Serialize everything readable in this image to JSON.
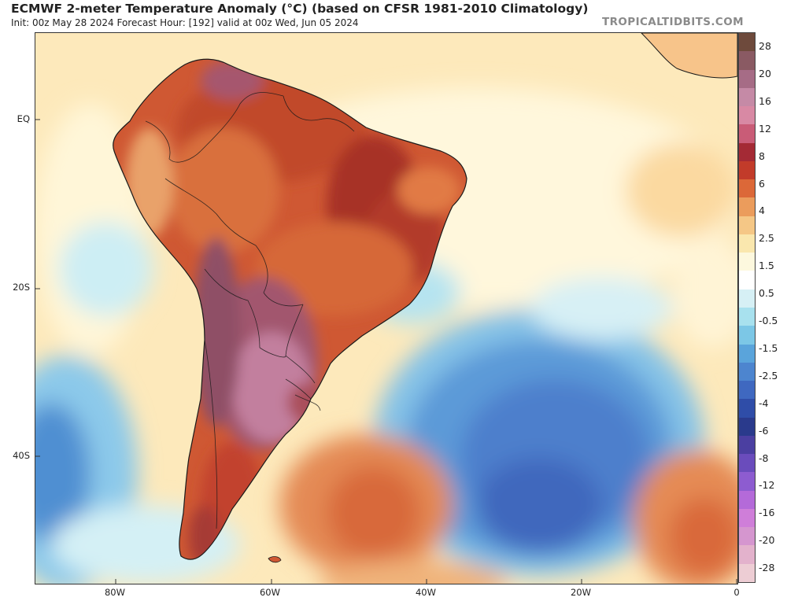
{
  "header": {
    "title": "ECMWF 2-meter Temperature Anomaly (°C) (based on CFSR 1981-2010 Climatology)",
    "subtitle": "Init: 00z May 28 2024   Forecast Hour: [192]   valid at 00z Wed, Jun 05 2024",
    "brand": "TROPICALTIDBITS.COM"
  },
  "axes": {
    "lat_labels": [
      "EQ",
      "20S",
      "40S"
    ],
    "lon_labels": [
      "80W",
      "60W",
      "40W",
      "20W",
      "0"
    ]
  },
  "colorbar": {
    "labels": [
      "28",
      "20",
      "16",
      "12",
      "8",
      "6",
      "4",
      "2.5",
      "1.5",
      "0.5",
      "-0.5",
      "-1.5",
      "-2.5",
      "-4",
      "-6",
      "-8",
      "-12",
      "-16",
      "-20",
      "-28"
    ],
    "colors": [
      "#6e4a3c",
      "#8a5a63",
      "#a66c86",
      "#c58aa6",
      "#d889a4",
      "#c95c77",
      "#a42a35",
      "#c23b2a",
      "#dc6838",
      "#eb9c5c",
      "#f5c786",
      "#fae7ae",
      "#fdf8de",
      "#ffffff",
      "#d6f0f5",
      "#a8e1ee",
      "#7cc7e6",
      "#5aa4db",
      "#4d85cf",
      "#3f68c0",
      "#2f4da8",
      "#2a3a8c",
      "#4b3fa1",
      "#6a4cbc",
      "#8d5cd0",
      "#b46ad9",
      "#cf7ed9",
      "#d596cf",
      "#e3b2cc",
      "#edcdd4"
    ]
  },
  "map": {
    "regions": [
      "South America",
      "Atlantic Ocean",
      "Pacific Ocean",
      "Africa"
    ]
  }
}
